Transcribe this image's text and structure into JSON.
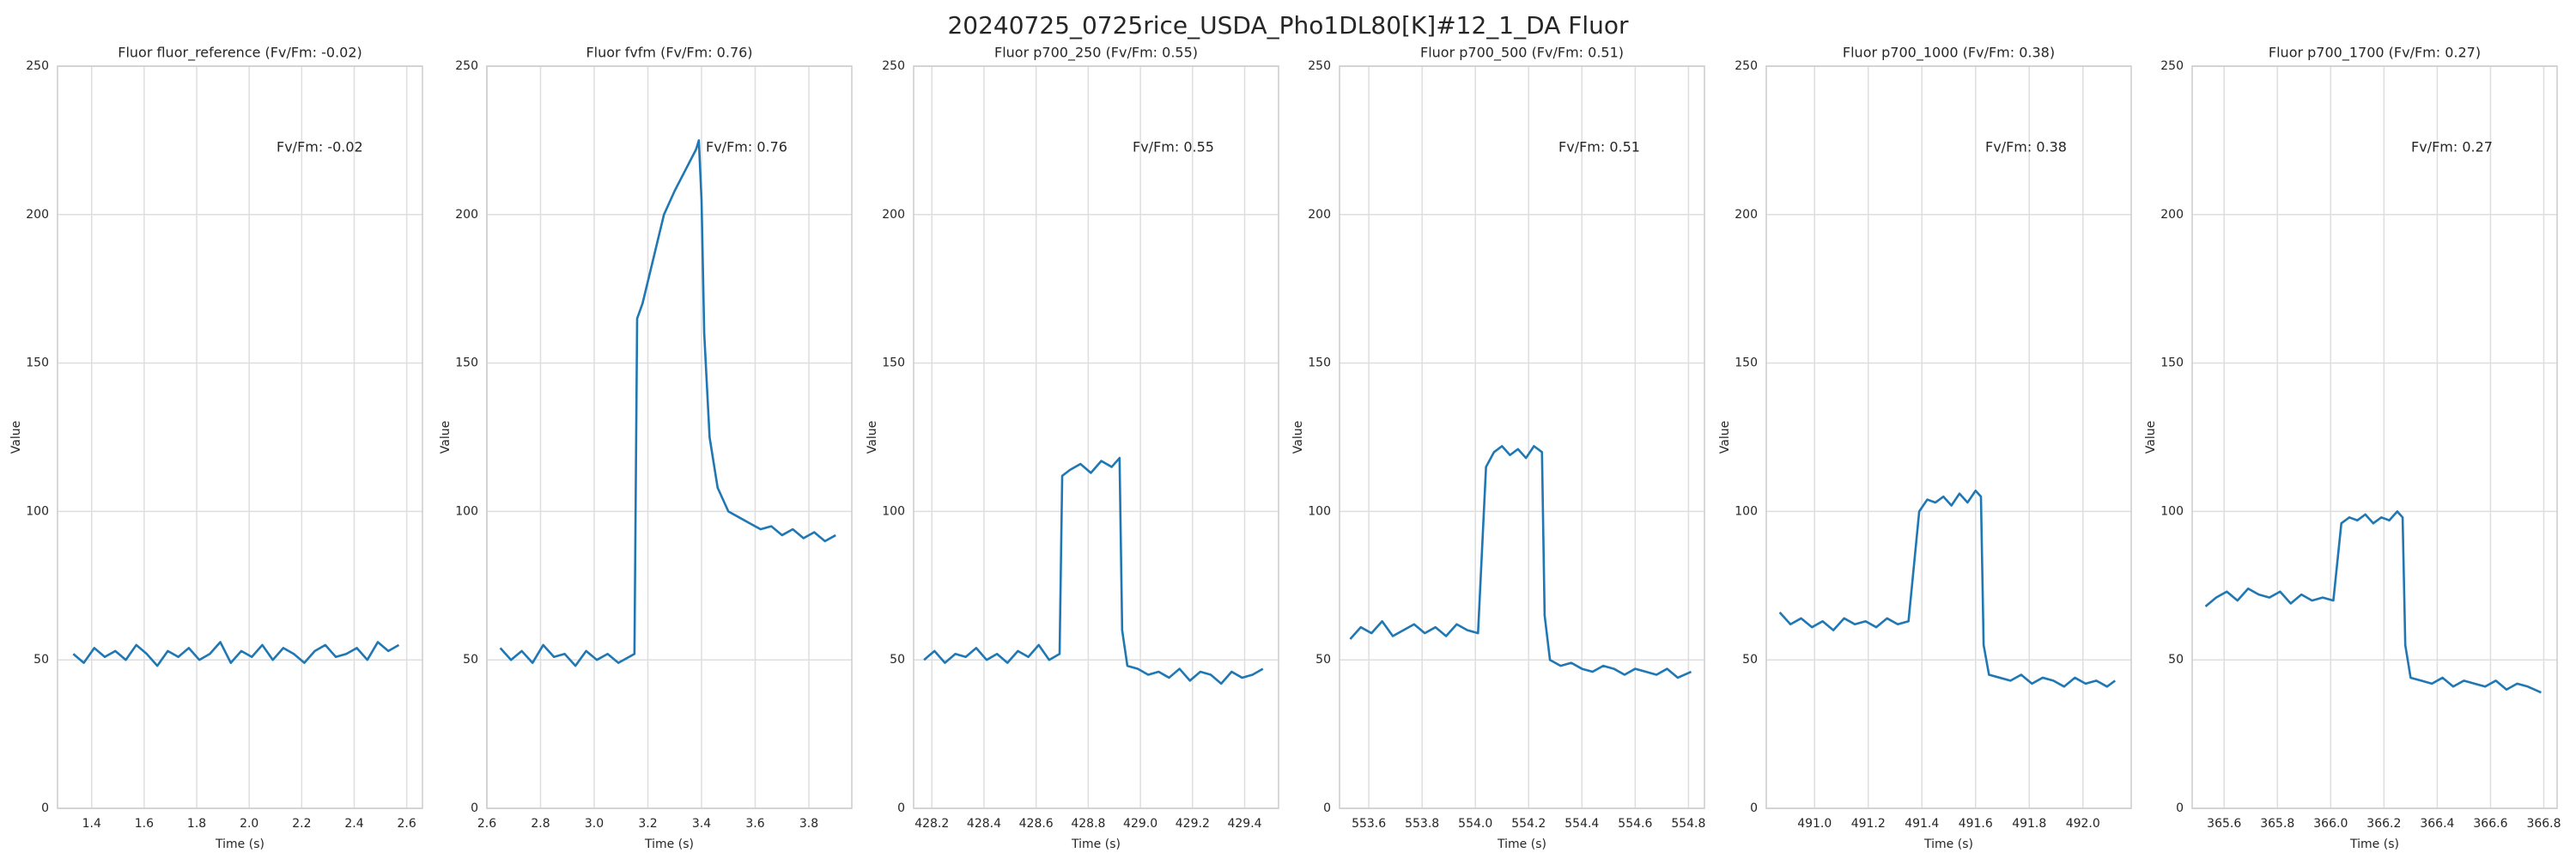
{
  "title": "20240725_0725rice_USDA_Pho1DL80[K]#12_1_DA Fluor",
  "chart_data": [
    {
      "type": "line",
      "title": "Fluor fluor_reference (Fv/Fm: -0.02)",
      "annotation": "Fv/Fm: -0.02",
      "xlabel": "Time (s)",
      "ylabel": "Value",
      "grid": true,
      "xlim": [
        1.27,
        2.66
      ],
      "xticks": [
        1.4,
        1.6,
        1.8,
        {
          "value": 2,
          "label": "2.0"
        },
        2.2,
        2.4,
        2.6
      ],
      "ylim": [
        0,
        250
      ],
      "yticks": [
        0,
        50,
        100,
        150,
        200,
        250
      ],
      "series": [
        {
          "color": "#1f77b4",
          "x": [
            1.33,
            1.37,
            1.41,
            1.45,
            1.49,
            1.53,
            1.57,
            1.61,
            1.65,
            1.69,
            1.73,
            1.77,
            1.81,
            1.85,
            1.89,
            1.93,
            1.97,
            2.01,
            2.05,
            2.09,
            2.13,
            2.17,
            2.21,
            2.25,
            2.29,
            2.33,
            2.37,
            2.41,
            2.45,
            2.49,
            2.53,
            2.57
          ],
          "values": [
            52,
            49,
            54,
            51,
            53,
            50,
            55,
            52,
            48,
            53,
            51,
            54,
            50,
            52,
            56,
            49,
            53,
            51,
            55,
            50,
            54,
            52,
            49,
            53,
            55,
            51,
            52,
            54,
            50,
            56,
            53,
            55
          ]
        }
      ]
    },
    {
      "type": "line",
      "title": "Fluor fvfm (Fv/Fm: 0.76)",
      "annotation": "Fv/Fm: 0.76",
      "xlabel": "Time (s)",
      "ylabel": "Value",
      "grid": true,
      "xlim": [
        2.6,
        3.96
      ],
      "xticks": [
        2.6,
        2.8,
        {
          "value": 3,
          "label": "3.0"
        },
        3.2,
        3.4,
        3.6,
        3.8
      ],
      "ylim": [
        0,
        250
      ],
      "yticks": [
        0,
        50,
        100,
        150,
        200,
        250
      ],
      "series": [
        {
          "color": "#1f77b4",
          "x": [
            2.65,
            2.69,
            2.73,
            2.77,
            2.81,
            2.85,
            2.89,
            2.93,
            2.97,
            3.01,
            3.05,
            3.09,
            3.13,
            3.15,
            3.16,
            3.18,
            3.22,
            3.26,
            3.3,
            3.34,
            3.38,
            3.39,
            3.4,
            3.41,
            3.43,
            3.46,
            3.5,
            3.54,
            3.58,
            3.62,
            3.66,
            3.7,
            3.74,
            3.78,
            3.82,
            3.86,
            3.9
          ],
          "values": [
            54,
            50,
            53,
            49,
            55,
            51,
            52,
            48,
            53,
            50,
            52,
            49,
            51,
            52,
            165,
            170,
            185,
            200,
            208,
            215,
            222,
            225,
            205,
            160,
            125,
            108,
            100,
            98,
            96,
            94,
            95,
            92,
            94,
            91,
            93,
            90,
            92
          ]
        }
      ]
    },
    {
      "type": "line",
      "title": "Fluor p700_250 (Fv/Fm: 0.55)",
      "annotation": "Fv/Fm: 0.55",
      "xlabel": "Time (s)",
      "ylabel": "Value",
      "grid": true,
      "xlim": [
        428.13,
        429.53
      ],
      "xticks": [
        428.2,
        428.4,
        428.6,
        428.8,
        {
          "value": 429,
          "label": "429.0"
        },
        429.2,
        429.4
      ],
      "ylim": [
        0,
        250
      ],
      "yticks": [
        0,
        50,
        100,
        150,
        200,
        250
      ],
      "series": [
        {
          "color": "#1f77b4",
          "x": [
            428.17,
            428.21,
            428.25,
            428.29,
            428.33,
            428.37,
            428.41,
            428.45,
            428.49,
            428.53,
            428.57,
            428.61,
            428.65,
            428.69,
            428.7,
            428.73,
            428.77,
            428.81,
            428.85,
            428.89,
            428.92,
            428.93,
            428.95,
            428.99,
            429.03,
            429.07,
            429.11,
            429.15,
            429.19,
            429.23,
            429.27,
            429.31,
            429.35,
            429.39,
            429.43,
            429.47
          ],
          "values": [
            50,
            53,
            49,
            52,
            51,
            54,
            50,
            52,
            49,
            53,
            51,
            55,
            50,
            52,
            112,
            114,
            116,
            113,
            117,
            115,
            118,
            60,
            48,
            47,
            45,
            46,
            44,
            47,
            43,
            46,
            45,
            42,
            46,
            44,
            45,
            47
          ]
        }
      ]
    },
    {
      "type": "line",
      "title": "Fluor p700_500 (Fv/Fm: 0.51)",
      "annotation": "Fv/Fm: 0.51",
      "xlabel": "Time (s)",
      "ylabel": "Value",
      "grid": true,
      "xlim": [
        553.49,
        554.86
      ],
      "xticks": [
        553.6,
        553.8,
        {
          "value": 554,
          "label": "554.0"
        },
        554.2,
        554.4,
        554.6,
        554.8
      ],
      "ylim": [
        0,
        250
      ],
      "yticks": [
        0,
        50,
        100,
        150,
        200,
        250
      ],
      "series": [
        {
          "color": "#1f77b4",
          "x": [
            553.53,
            553.57,
            553.61,
            553.65,
            553.69,
            553.73,
            553.77,
            553.81,
            553.85,
            553.89,
            553.93,
            553.97,
            554.01,
            554.04,
            554.07,
            554.1,
            554.13,
            554.16,
            554.19,
            554.22,
            554.25,
            554.26,
            554.28,
            554.32,
            554.36,
            554.4,
            554.44,
            554.48,
            554.52,
            554.56,
            554.6,
            554.64,
            554.68,
            554.72,
            554.76,
            554.81
          ],
          "values": [
            57,
            61,
            59,
            63,
            58,
            60,
            62,
            59,
            61,
            58,
            62,
            60,
            59,
            115,
            120,
            122,
            119,
            121,
            118,
            122,
            120,
            65,
            50,
            48,
            49,
            47,
            46,
            48,
            47,
            45,
            47,
            46,
            45,
            47,
            44,
            46
          ]
        }
      ]
    },
    {
      "type": "line",
      "title": "Fluor p700_1000 (Fv/Fm: 0.38)",
      "annotation": "Fv/Fm: 0.38",
      "xlabel": "Time (s)",
      "ylabel": "Value",
      "grid": true,
      "xlim": [
        490.82,
        492.18
      ],
      "xticks": [
        {
          "value": 491,
          "label": "491.0"
        },
        491.2,
        491.4,
        491.6,
        491.8,
        {
          "value": 492,
          "label": "492.0"
        }
      ],
      "ylim": [
        0,
        250
      ],
      "yticks": [
        0,
        50,
        100,
        150,
        200,
        250
      ],
      "series": [
        {
          "color": "#1f77b4",
          "x": [
            490.87,
            490.91,
            490.95,
            490.99,
            491.03,
            491.07,
            491.11,
            491.15,
            491.19,
            491.23,
            491.27,
            491.31,
            491.35,
            491.39,
            491.42,
            491.45,
            491.48,
            491.51,
            491.54,
            491.57,
            491.6,
            491.62,
            491.63,
            491.65,
            491.69,
            491.73,
            491.77,
            491.81,
            491.85,
            491.89,
            491.93,
            491.97,
            492.01,
            492.05,
            492.09,
            492.12
          ],
          "values": [
            66,
            62,
            64,
            61,
            63,
            60,
            64,
            62,
            63,
            61,
            64,
            62,
            63,
            100,
            104,
            103,
            105,
            102,
            106,
            103,
            107,
            105,
            55,
            45,
            44,
            43,
            45,
            42,
            44,
            43,
            41,
            44,
            42,
            43,
            41,
            43
          ]
        }
      ]
    },
    {
      "type": "line",
      "title": "Fluor p700_1700 (Fv/Fm: 0.27)",
      "annotation": "Fv/Fm: 0.27",
      "xlabel": "Time (s)",
      "ylabel": "Value",
      "grid": true,
      "xlim": [
        365.48,
        366.85
      ],
      "xticks": [
        365.6,
        365.8,
        {
          "value": 366,
          "label": "366.0"
        },
        366.2,
        366.4,
        366.6,
        366.8
      ],
      "ylim": [
        0,
        250
      ],
      "yticks": [
        0,
        50,
        100,
        150,
        200,
        250
      ],
      "series": [
        {
          "color": "#1f77b4",
          "x": [
            365.53,
            365.57,
            365.61,
            365.65,
            365.69,
            365.73,
            365.77,
            365.81,
            365.85,
            365.89,
            365.93,
            365.97,
            366.01,
            366.04,
            366.07,
            366.1,
            366.13,
            366.16,
            366.19,
            366.22,
            366.25,
            366.27,
            366.28,
            366.3,
            366.34,
            366.38,
            366.42,
            366.46,
            366.5,
            366.54,
            366.58,
            366.62,
            366.66,
            366.7,
            366.74,
            366.79
          ],
          "values": [
            68,
            71,
            73,
            70,
            74,
            72,
            71,
            73,
            69,
            72,
            70,
            71,
            70,
            96,
            98,
            97,
            99,
            96,
            98,
            97,
            100,
            98,
            55,
            44,
            43,
            42,
            44,
            41,
            43,
            42,
            41,
            43,
            40,
            42,
            41,
            39
          ]
        }
      ]
    }
  ]
}
